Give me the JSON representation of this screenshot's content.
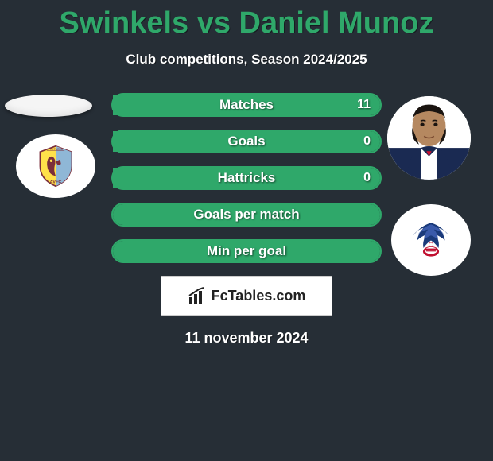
{
  "title": "Swinkels vs Daniel Munoz",
  "subtitle": "Club competitions, Season 2024/2025",
  "date": "11 november 2024",
  "brand": "FcTables.com",
  "colors": {
    "accent": "#2fa86a",
    "background": "#262e36",
    "text": "#ffffff",
    "brand_text": "#222222",
    "brand_bg": "#ffffff"
  },
  "stats": [
    {
      "label": "Matches",
      "left_val": "",
      "right_val": "11",
      "left_pct": 0,
      "right_pct": 100
    },
    {
      "label": "Goals",
      "left_val": "",
      "right_val": "0",
      "left_pct": 0,
      "right_pct": 100
    },
    {
      "label": "Hattricks",
      "left_val": "",
      "right_val": "0",
      "left_pct": 0,
      "right_pct": 100
    },
    {
      "label": "Goals per match",
      "left_val": "",
      "right_val": "",
      "left_pct": 50,
      "right_pct": 50
    },
    {
      "label": "Min per goal",
      "left_val": "",
      "right_val": "",
      "left_pct": 50,
      "right_pct": 50
    }
  ],
  "icons": {
    "avatar_left": "placeholder-avatar",
    "avatar_right": "player-photo",
    "club_left": "avfc-crest",
    "club_right": "crystal-palace-crest",
    "brand": "bar-chart-icon"
  }
}
